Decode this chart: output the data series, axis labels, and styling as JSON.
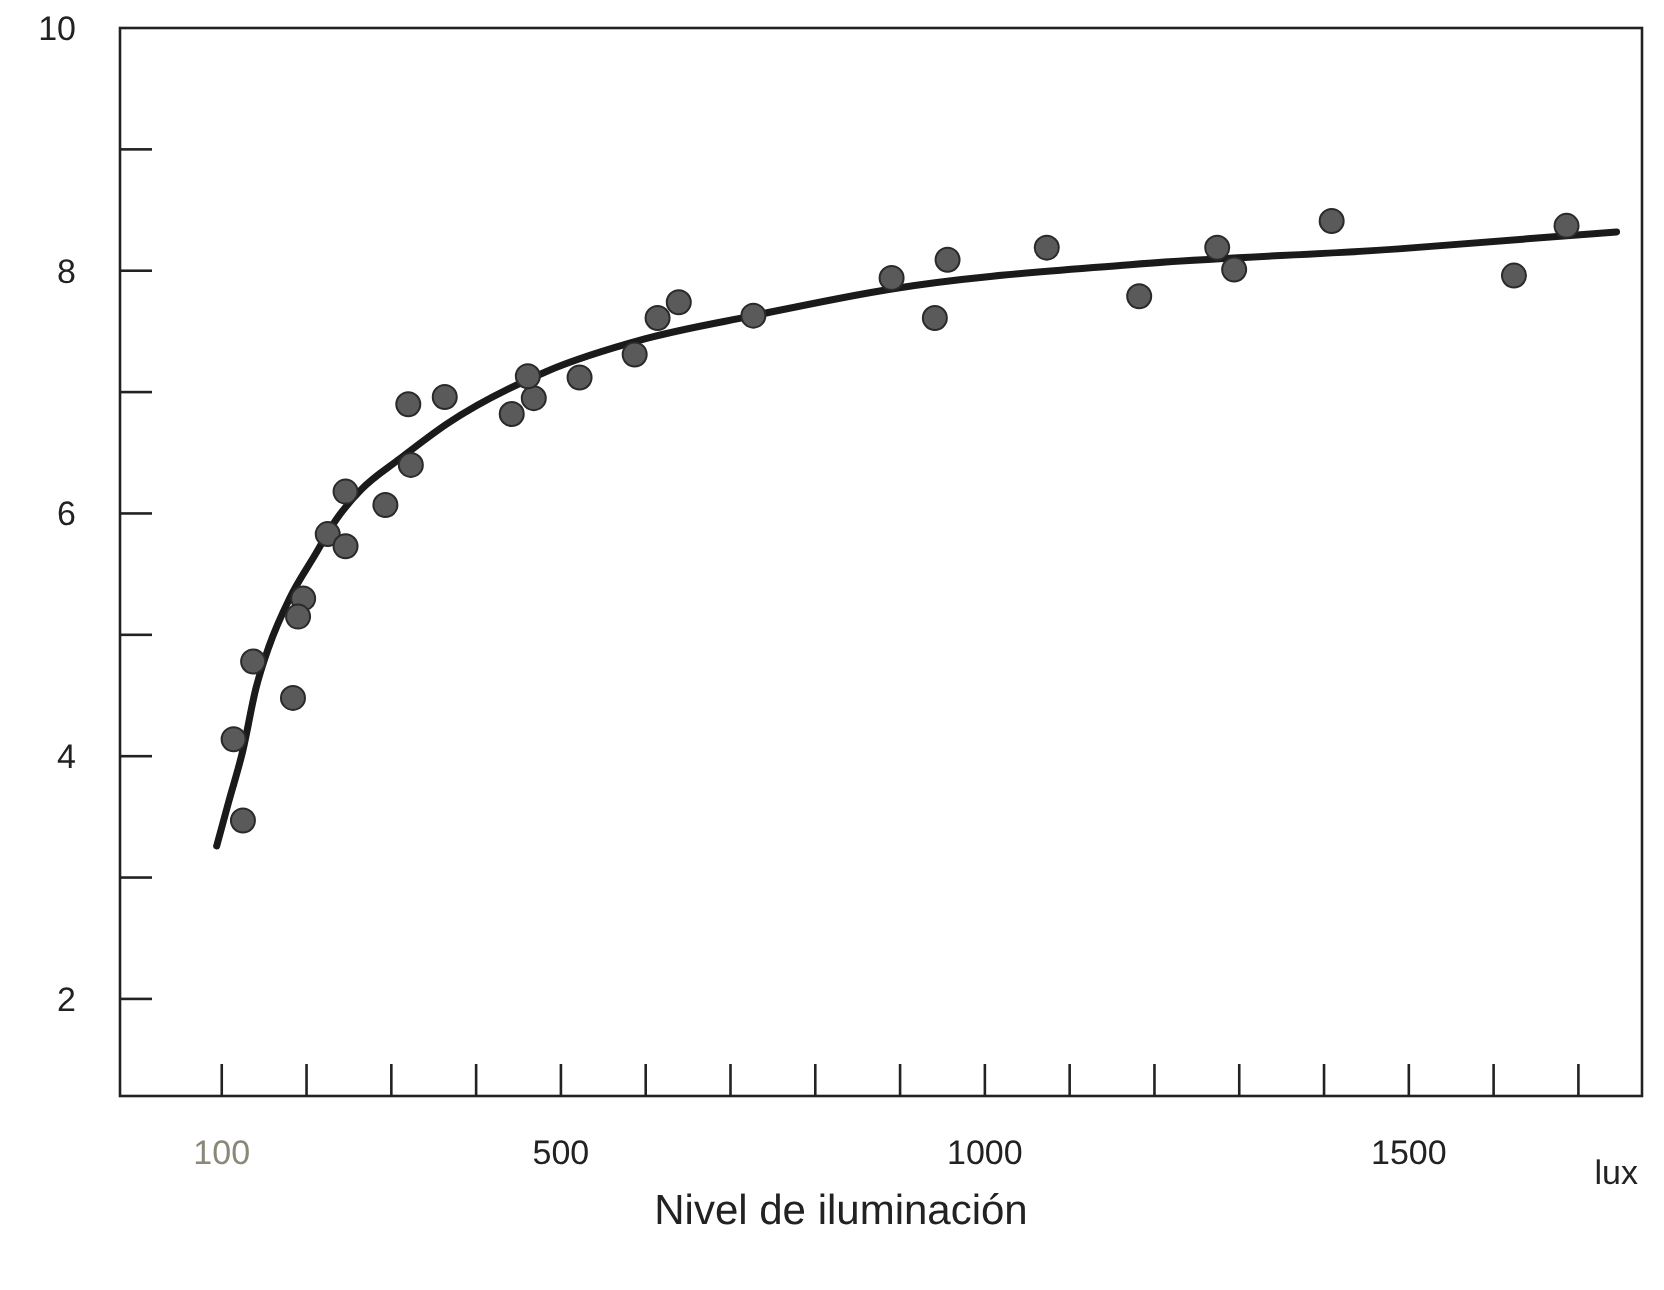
{
  "chart_data": {
    "type": "scatter",
    "xlabel": "Nivel de iluminación",
    "annotations": [
      "lux"
    ],
    "xlim": [
      -20,
      1775
    ],
    "xticks": [
      {
        "value": 100,
        "label": "100"
      },
      {
        "value": 200,
        "label": null
      },
      {
        "value": 300,
        "label": null
      },
      {
        "value": 400,
        "label": null
      },
      500,
      {
        "value": 600,
        "label": null
      },
      {
        "value": 700,
        "label": null
      },
      {
        "value": 800,
        "label": null
      },
      {
        "value": 900,
        "label": null
      },
      1000,
      {
        "value": 1100,
        "label": null
      },
      {
        "value": 1200,
        "label": null
      },
      {
        "value": 1300,
        "label": null
      },
      {
        "value": 1400,
        "label": null
      },
      1500,
      {
        "value": 1600,
        "label": null
      },
      {
        "value": 1700,
        "label": null
      }
    ],
    "ylim": [
      1.2,
      10
    ],
    "yticks": [
      2,
      {
        "value": 3,
        "label": null
      },
      4,
      {
        "value": 5,
        "label": null
      },
      6,
      {
        "value": 7,
        "label": null
      },
      8,
      {
        "value": 9,
        "label": null
      },
      10
    ],
    "grid": false,
    "series": [
      {
        "color": "#5a5a5a",
        "marker": "circle",
        "x": [
          125,
          114,
          137,
          184,
          196,
          190,
          225,
          246,
          246,
          293,
          323,
          320,
          363,
          442,
          468,
          461,
          522,
          587,
          614,
          639,
          727,
          890,
          941,
          956,
          1073,
          1182,
          1274,
          1294,
          1409,
          1624,
          1686
        ],
        "values": [
          3.47,
          4.14,
          4.78,
          4.48,
          5.3,
          5.15,
          5.83,
          5.73,
          6.18,
          6.07,
          6.4,
          6.9,
          6.96,
          6.82,
          6.95,
          7.13,
          7.12,
          7.31,
          7.61,
          7.74,
          7.63,
          7.94,
          7.61,
          8.09,
          8.19,
          7.79,
          8.19,
          8.01,
          8.41,
          7.96,
          8.37
        ]
      },
      {
        "type": "line",
        "color": "#1a1a1a",
        "line_style": "solid",
        "marker": "none",
        "x": [
          94,
          108,
          125,
          140,
          156,
          180,
          211,
          235,
          265,
          310,
          366,
          483,
          600,
          727,
          890,
          1171,
          1488,
          1745
        ],
        "values": [
          3.26,
          3.62,
          4.05,
          4.55,
          4.91,
          5.3,
          5.67,
          5.95,
          6.2,
          6.45,
          6.74,
          7.17,
          7.44,
          7.63,
          7.85,
          8.05,
          8.18,
          8.32
        ]
      }
    ]
  }
}
